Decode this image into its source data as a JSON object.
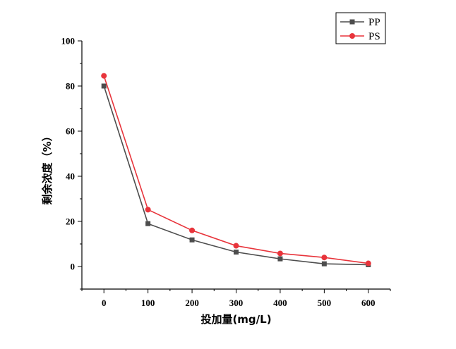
{
  "chart_data": {
    "type": "line",
    "title": "",
    "xlabel": "投加量(mg/L)",
    "ylabel": "剩余浓度（%）",
    "x": [
      0,
      100,
      200,
      300,
      400,
      500,
      600
    ],
    "xticks": [
      "0",
      "100",
      "200",
      "300",
      "400",
      "500",
      "600"
    ],
    "xlim": [
      -50,
      650
    ],
    "ylim": [
      -10,
      100
    ],
    "yticks": [
      "0",
      "20",
      "40",
      "60",
      "80",
      "100"
    ],
    "grid": false,
    "legend_position": "top-right",
    "series": [
      {
        "name": "PP",
        "color": "#4d4d4d",
        "marker": "square",
        "values": [
          80.0,
          19.0,
          11.8,
          6.4,
          3.4,
          1.2,
          0.8
        ]
      },
      {
        "name": "PS",
        "color": "#e8343b",
        "marker": "circle",
        "values": [
          84.5,
          25.2,
          16.0,
          9.2,
          5.8,
          4.0,
          1.4
        ]
      }
    ]
  }
}
